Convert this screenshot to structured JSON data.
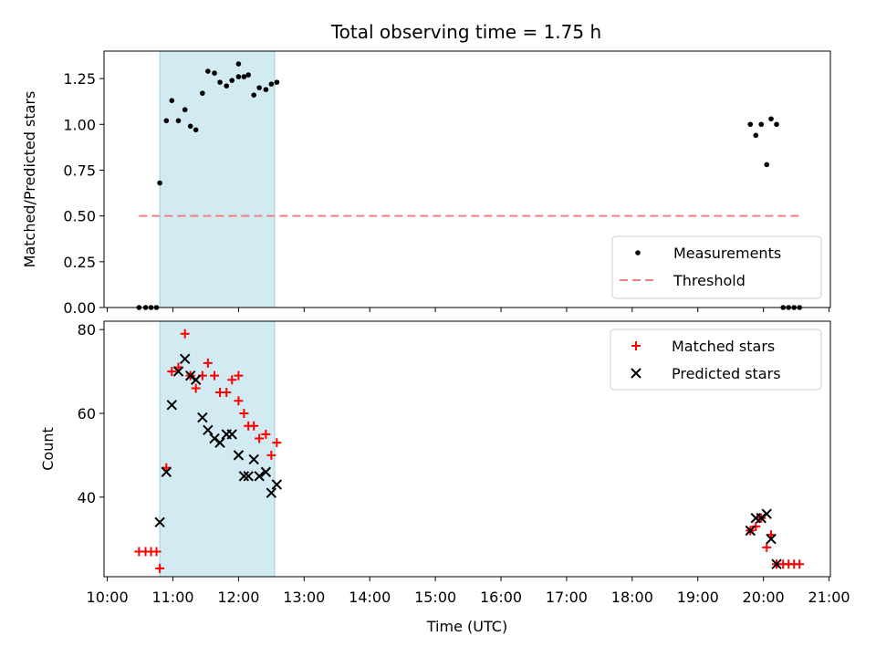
{
  "chart_data": [
    {
      "type": "scatter",
      "panel": "top",
      "title": "Total observing time = 1.75 h",
      "xlabel": "",
      "ylabel": "Matched/Predicted stars",
      "ylim": [
        0,
        1.4
      ],
      "yticks": [
        0.0,
        0.25,
        0.5,
        0.75,
        1.0,
        1.25
      ],
      "ytick_labels": [
        "0.00",
        "0.25",
        "0.50",
        "0.75",
        "1.00",
        "1.25"
      ],
      "xlim_hours": [
        9.95,
        21.02
      ],
      "shaded_span_hours": [
        10.8,
        12.55
      ],
      "shaded_color": "#add8e6",
      "legend_position": "lower right",
      "series": [
        {
          "name": "Measurements",
          "marker": "dot",
          "color": "#000000",
          "points": [
            [
              "10:29",
              0.0
            ],
            [
              "10:35",
              0.0
            ],
            [
              "10:40",
              0.0
            ],
            [
              "10:45",
              0.0
            ],
            [
              "10:48",
              0.68
            ],
            [
              "10:54",
              1.02
            ],
            [
              "10:59",
              1.13
            ],
            [
              "11:05",
              1.02
            ],
            [
              "11:11",
              1.08
            ],
            [
              "11:16",
              0.99
            ],
            [
              "11:21",
              0.97
            ],
            [
              "11:27",
              1.17
            ],
            [
              "11:32",
              1.29
            ],
            [
              "11:38",
              1.28
            ],
            [
              "11:43",
              1.23
            ],
            [
              "11:49",
              1.21
            ],
            [
              "11:54",
              1.24
            ],
            [
              "12:00",
              1.26
            ],
            [
              "12:05",
              1.26
            ],
            [
              "12:00",
              1.33
            ],
            [
              "12:09",
              1.27
            ],
            [
              "12:14",
              1.16
            ],
            [
              "12:19",
              1.2
            ],
            [
              "12:25",
              1.19
            ],
            [
              "12:30",
              1.22
            ],
            [
              "12:35",
              1.23
            ],
            [
              "19:48",
              1.0
            ],
            [
              "19:53",
              0.94
            ],
            [
              "19:58",
              1.0
            ],
            [
              "20:03",
              0.78
            ],
            [
              "20:07",
              1.03
            ],
            [
              "20:12",
              1.0
            ],
            [
              "20:18",
              0.0
            ],
            [
              "20:23",
              0.0
            ],
            [
              "20:28",
              0.0
            ],
            [
              "20:33",
              0.0
            ]
          ]
        },
        {
          "name": "Threshold",
          "marker": "dashed-line",
          "color": "#f08080",
          "x": [
            "10:29",
            "20:33"
          ],
          "y": [
            0.5,
            0.5
          ]
        }
      ]
    },
    {
      "type": "scatter",
      "panel": "bottom",
      "xlabel": "Time (UTC)",
      "ylabel": "Count",
      "ylim": [
        21,
        82
      ],
      "yticks": [
        40,
        60,
        80
      ],
      "ytick_labels": [
        "40",
        "60",
        "80"
      ],
      "xticks": [
        "10:00",
        "11:00",
        "12:00",
        "13:00",
        "14:00",
        "15:00",
        "16:00",
        "17:00",
        "18:00",
        "19:00",
        "20:00",
        "21:00"
      ],
      "xlim_hours": [
        9.95,
        21.02
      ],
      "shaded_span_hours": [
        10.8,
        12.55
      ],
      "legend_position": "upper right",
      "series": [
        {
          "name": "Matched stars",
          "marker": "plus",
          "color": "#ff0000",
          "points": [
            [
              "10:29",
              27
            ],
            [
              "10:35",
              27
            ],
            [
              "10:40",
              27
            ],
            [
              "10:45",
              27
            ],
            [
              "10:48",
              23
            ],
            [
              "10:54",
              47
            ],
            [
              "10:59",
              70
            ],
            [
              "11:05",
              71
            ],
            [
              "11:11",
              79
            ],
            [
              "11:16",
              69
            ],
            [
              "11:21",
              66
            ],
            [
              "11:27",
              69
            ],
            [
              "11:32",
              72
            ],
            [
              "11:38",
              69
            ],
            [
              "11:43",
              65
            ],
            [
              "11:49",
              65
            ],
            [
              "11:54",
              68
            ],
            [
              "12:00",
              69
            ],
            [
              "12:00",
              63
            ],
            [
              "12:05",
              60
            ],
            [
              "12:09",
              57
            ],
            [
              "12:14",
              57
            ],
            [
              "12:19",
              54
            ],
            [
              "12:25",
              55
            ],
            [
              "12:30",
              50
            ],
            [
              "12:35",
              53
            ],
            [
              "19:48",
              32
            ],
            [
              "19:53",
              33
            ],
            [
              "19:58",
              35
            ],
            [
              "20:03",
              28
            ],
            [
              "20:07",
              31
            ],
            [
              "20:12",
              24
            ],
            [
              "20:18",
              24
            ],
            [
              "20:23",
              24
            ],
            [
              "20:28",
              24
            ],
            [
              "20:33",
              24
            ]
          ]
        },
        {
          "name": "Predicted stars",
          "marker": "x",
          "color": "#000000",
          "points": [
            [
              "10:48",
              34
            ],
            [
              "10:54",
              46
            ],
            [
              "10:59",
              62
            ],
            [
              "11:05",
              70
            ],
            [
              "11:11",
              73
            ],
            [
              "11:16",
              69
            ],
            [
              "11:21",
              68
            ],
            [
              "11:27",
              59
            ],
            [
              "11:32",
              56
            ],
            [
              "11:38",
              54
            ],
            [
              "11:43",
              53
            ],
            [
              "11:49",
              55
            ],
            [
              "11:54",
              55
            ],
            [
              "12:00",
              50
            ],
            [
              "12:05",
              45
            ],
            [
              "12:09",
              45
            ],
            [
              "12:14",
              49
            ],
            [
              "12:19",
              45
            ],
            [
              "12:25",
              46
            ],
            [
              "12:30",
              41
            ],
            [
              "12:35",
              43
            ],
            [
              "19:48",
              32
            ],
            [
              "19:53",
              35
            ],
            [
              "19:58",
              35
            ],
            [
              "20:03",
              36
            ],
            [
              "20:07",
              30
            ],
            [
              "20:12",
              24
            ]
          ]
        }
      ]
    }
  ]
}
